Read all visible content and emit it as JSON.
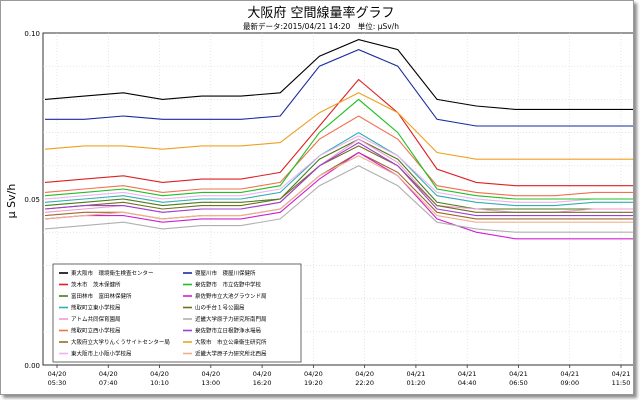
{
  "chart_data": {
    "type": "line",
    "title": "大阪府 空間線量率グラフ",
    "subtitle": "最新データ:2015/04/21 14:20　単位: μSv/h",
    "ylabel": "μ Sv/h",
    "xlabel": "",
    "ylim": [
      0.0,
      0.1
    ],
    "y_ticks": [
      "0.10",
      "0.05",
      "0.00"
    ],
    "grid": true,
    "legend_position": "bottom-left",
    "x_ticks": [
      {
        "date": "04/20",
        "time": "05:30"
      },
      {
        "date": "04/20",
        "time": "07:40"
      },
      {
        "date": "04/20",
        "time": "10:10"
      },
      {
        "date": "04/20",
        "time": "13:00"
      },
      {
        "date": "04/20",
        "time": "16:20"
      },
      {
        "date": "04/20",
        "time": "19:20"
      },
      {
        "date": "04/20",
        "time": "22:20"
      },
      {
        "date": "04/21",
        "time": "01:20"
      },
      {
        "date": "04/21",
        "time": "04:40"
      },
      {
        "date": "04/21",
        "time": "06:50"
      },
      {
        "date": "04/21",
        "time": "09:00"
      },
      {
        "date": "04/21",
        "time": "11:50"
      }
    ],
    "series": [
      {
        "name": "東大阪市　環境衛生検査センター",
        "color": "#000000",
        "values": [
          0.08,
          0.081,
          0.082,
          0.08,
          0.081,
          0.081,
          0.082,
          0.093,
          0.098,
          0.095,
          0.08,
          0.078,
          0.077,
          0.077,
          0.077,
          0.077
        ]
      },
      {
        "name": "茨木市　茨木保健所",
        "color": "#dd2020",
        "values": [
          0.055,
          0.056,
          0.057,
          0.055,
          0.056,
          0.056,
          0.058,
          0.072,
          0.086,
          0.076,
          0.059,
          0.055,
          0.054,
          0.054,
          0.054,
          0.054
        ]
      },
      {
        "name": "富田林市　富田林保健所",
        "color": "#4a7a1a",
        "values": [
          0.048,
          0.049,
          0.05,
          0.048,
          0.049,
          0.049,
          0.05,
          0.062,
          0.068,
          0.062,
          0.049,
          0.047,
          0.047,
          0.047,
          0.047,
          0.047
        ]
      },
      {
        "name": "熊取町立東小学校局",
        "color": "#30b0b0",
        "values": [
          0.049,
          0.05,
          0.051,
          0.049,
          0.05,
          0.05,
          0.052,
          0.063,
          0.07,
          0.063,
          0.051,
          0.049,
          0.048,
          0.048,
          0.049,
          0.049
        ]
      },
      {
        "name": "アトム共同保育園局",
        "color": "#ef9ad0",
        "values": [
          0.046,
          0.047,
          0.048,
          0.046,
          0.047,
          0.047,
          0.049,
          0.06,
          0.068,
          0.061,
          0.048,
          0.047,
          0.046,
          0.046,
          0.047,
          0.047
        ]
      },
      {
        "name": "熊取町立西小学校局",
        "color": "#f07050",
        "values": [
          0.052,
          0.053,
          0.054,
          0.052,
          0.053,
          0.053,
          0.055,
          0.068,
          0.075,
          0.068,
          0.054,
          0.052,
          0.051,
          0.051,
          0.052,
          0.052
        ]
      },
      {
        "name": "大阪府立大学りんくうサイトセンター局",
        "color": "#9a6a2a",
        "values": [
          0.045,
          0.046,
          0.046,
          0.044,
          0.045,
          0.045,
          0.047,
          0.057,
          0.064,
          0.058,
          0.046,
          0.044,
          0.044,
          0.044,
          0.044,
          0.044
        ]
      },
      {
        "name": "東大阪市上小阪小学校局",
        "color": "#f0b0f0",
        "values": [
          0.05,
          0.051,
          0.052,
          0.05,
          0.051,
          0.051,
          0.053,
          0.063,
          0.069,
          0.063,
          0.052,
          0.05,
          0.049,
          0.049,
          0.05,
          0.05
        ]
      },
      {
        "name": "寝屋川市　寝屋川保健所",
        "color": "#1a2aa0",
        "values": [
          0.074,
          0.074,
          0.075,
          0.074,
          0.074,
          0.074,
          0.075,
          0.09,
          0.095,
          0.09,
          0.074,
          0.072,
          0.072,
          0.072,
          0.072,
          0.072
        ]
      },
      {
        "name": "泉佐野市　市立佐野中学校",
        "color": "#20c020",
        "values": [
          0.051,
          0.052,
          0.053,
          0.051,
          0.052,
          0.052,
          0.054,
          0.07,
          0.08,
          0.07,
          0.053,
          0.051,
          0.05,
          0.05,
          0.05,
          0.05
        ]
      },
      {
        "name": "泉佐野市立大池グラウンド局",
        "color": "#d020d0",
        "values": [
          0.044,
          0.045,
          0.045,
          0.043,
          0.044,
          0.044,
          0.046,
          0.056,
          0.064,
          0.057,
          0.044,
          0.04,
          0.038,
          0.038,
          0.038,
          0.038
        ]
      },
      {
        "name": "山の手台１号公園局",
        "color": "#707020",
        "values": [
          0.047,
          0.048,
          0.049,
          0.047,
          0.048,
          0.048,
          0.05,
          0.06,
          0.066,
          0.06,
          0.048,
          0.046,
          0.046,
          0.046,
          0.046,
          0.046
        ]
      },
      {
        "name": "近畿大学原子力研究所南門局",
        "color": "#b0b0b0",
        "values": [
          0.041,
          0.042,
          0.043,
          0.041,
          0.042,
          0.042,
          0.044,
          0.054,
          0.06,
          0.054,
          0.043,
          0.041,
          0.04,
          0.04,
          0.04,
          0.04
        ]
      },
      {
        "name": "泉佐野市立日根野浄水場局",
        "color": "#a040d0",
        "values": [
          0.047,
          0.048,
          0.048,
          0.046,
          0.047,
          0.047,
          0.049,
          0.06,
          0.067,
          0.06,
          0.047,
          0.045,
          0.045,
          0.045,
          0.045,
          0.045
        ]
      },
      {
        "name": "大阪市　市立公衆衛生研究所",
        "color": "#f0a020",
        "values": [
          0.065,
          0.066,
          0.066,
          0.065,
          0.066,
          0.066,
          0.067,
          0.076,
          0.082,
          0.076,
          0.064,
          0.062,
          0.062,
          0.062,
          0.062,
          0.062
        ]
      },
      {
        "name": "近畿大学原子力研究所北西局",
        "color": "#f0b090",
        "values": [
          0.044,
          0.045,
          0.046,
          0.044,
          0.045,
          0.045,
          0.047,
          0.057,
          0.063,
          0.057,
          0.045,
          0.043,
          0.043,
          0.043,
          0.043,
          0.043
        ]
      }
    ]
  }
}
